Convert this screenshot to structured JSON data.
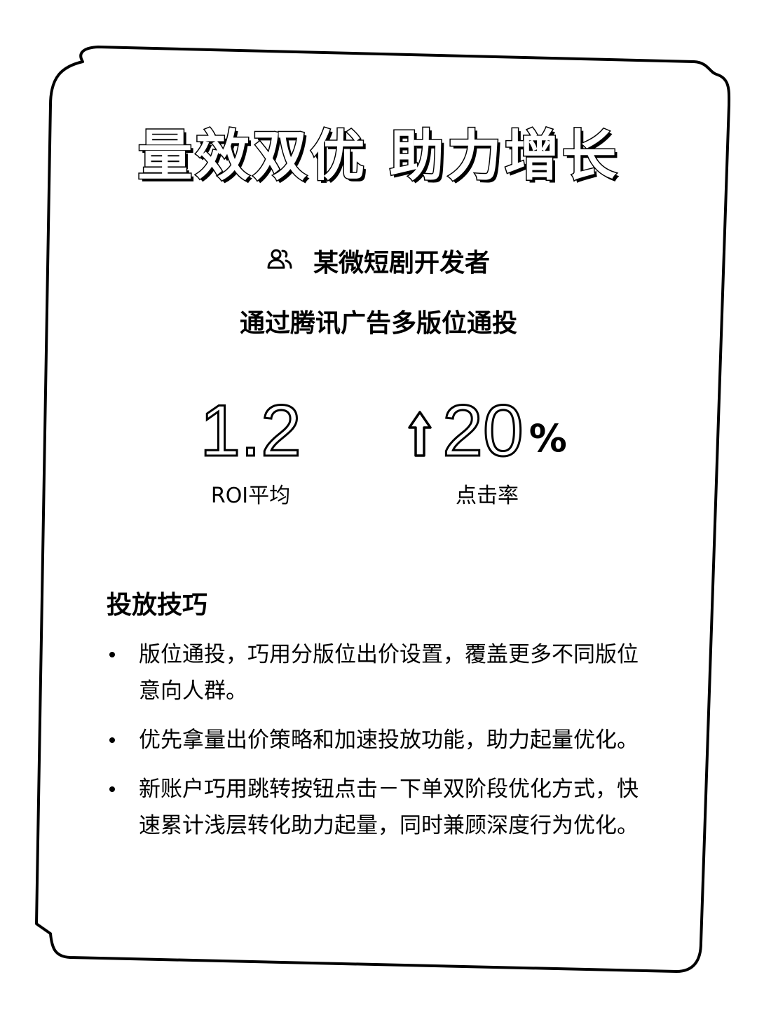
{
  "title": "量效双优 助力增长",
  "developer": {
    "icon": "people-icon",
    "name": "某微短剧开发者"
  },
  "subtitle": "通过腾讯广告多版位通投",
  "stats": {
    "roi": {
      "value": "1.2",
      "label": "ROI平均"
    },
    "ctr": {
      "direction_icon": "up-arrow-icon",
      "value": "20",
      "unit": "%",
      "label": "点击率"
    }
  },
  "tips": {
    "heading": "投放技巧",
    "items": [
      "版位通投，巧用分版位出价设置，覆盖更多不同版位意向人群。",
      "优先拿量出价策略和加速投放功能，助力起量优化。",
      "新账户巧用跳转按钮点击－下单双阶段优化方式，快速累计浅层转化助力起量，同时兼顾深度行为优化。"
    ]
  }
}
